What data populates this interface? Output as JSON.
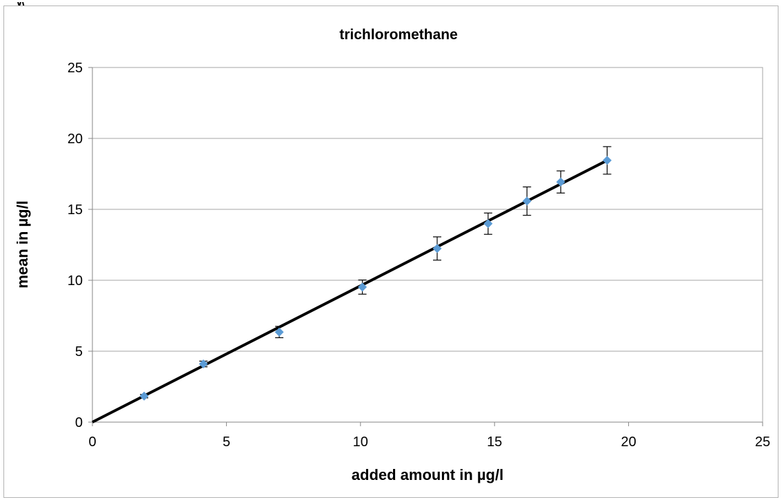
{
  "chart_data": {
    "type": "scatter",
    "title": "trichloromethane",
    "xlabel": "added amount in µg/l",
    "ylabel": "mean in µg/l",
    "xlim": [
      0,
      25
    ],
    "ylim": [
      0,
      25
    ],
    "xticks": [
      "0",
      "5",
      "10",
      "15",
      "20",
      "25"
    ],
    "yticks": [
      "0",
      "5",
      "10",
      "15",
      "20",
      "25"
    ],
    "grid": "horizontal",
    "legend": "none",
    "colors": {
      "points": "#5b9bd5",
      "line": "#000000",
      "errorbars": "#000000",
      "grid": "#a6a6a6"
    },
    "series": [
      {
        "x": [
          1.93,
          4.14,
          6.97,
          10.07,
          12.86,
          14.76,
          16.21,
          17.47,
          19.2
        ],
        "y": [
          1.83,
          4.1,
          6.35,
          9.52,
          12.24,
          13.99,
          15.58,
          16.93,
          18.45
        ],
        "yerr": [
          0.12,
          0.2,
          0.4,
          0.5,
          0.82,
          0.75,
          1.0,
          0.78,
          0.97
        ]
      }
    ],
    "trendline": {
      "x": [
        0,
        19.2
      ],
      "y": [
        0,
        18.45
      ]
    }
  }
}
